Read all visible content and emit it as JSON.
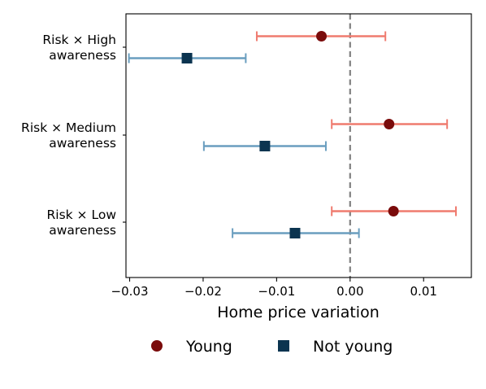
{
  "chart_data": {
    "type": "scatter",
    "subtype": "coefficient-plot-with-error-bars",
    "orientation": "horizontal",
    "xlabel": "Home price variation",
    "ylabel": "",
    "xlim": [
      -0.0305,
      0.0165
    ],
    "xticks": [
      -0.03,
      -0.02,
      -0.01,
      0.0,
      0.01
    ],
    "xtick_labels": [
      "−0.03",
      "−0.02",
      "−0.01",
      "0.00",
      "0.01"
    ],
    "reference_line": {
      "x": 0.0,
      "style": "dashed",
      "color": "#808080"
    },
    "categories": [
      {
        "line1": "Risk × High",
        "line2": "awareness"
      },
      {
        "line1": "Risk × Medium",
        "line2": "awareness"
      },
      {
        "line1": "Risk × Low",
        "line2": "awareness"
      }
    ],
    "series": [
      {
        "name": "Young",
        "marker": "circle",
        "marker_color": "#7a0b0b",
        "errorbar_color": "#ef7b6f",
        "points": [
          {
            "category": 0,
            "estimate": -0.0039,
            "lo": -0.0127,
            "hi": 0.0048
          },
          {
            "category": 1,
            "estimate": 0.0053,
            "lo": -0.0025,
            "hi": 0.0132
          },
          {
            "category": 2,
            "estimate": 0.0059,
            "lo": -0.0025,
            "hi": 0.0144
          }
        ]
      },
      {
        "name": "Not young",
        "marker": "square",
        "marker_color": "#0b3450",
        "errorbar_color": "#6a9ebf",
        "points": [
          {
            "category": 0,
            "estimate": -0.0222,
            "lo": -0.0301,
            "hi": -0.0142
          },
          {
            "category": 1,
            "estimate": -0.0116,
            "lo": -0.0199,
            "hi": -0.0033
          },
          {
            "category": 2,
            "estimate": -0.0075,
            "lo": -0.016,
            "hi": 0.0012
          }
        ]
      }
    ],
    "legend_position": "bottom"
  }
}
